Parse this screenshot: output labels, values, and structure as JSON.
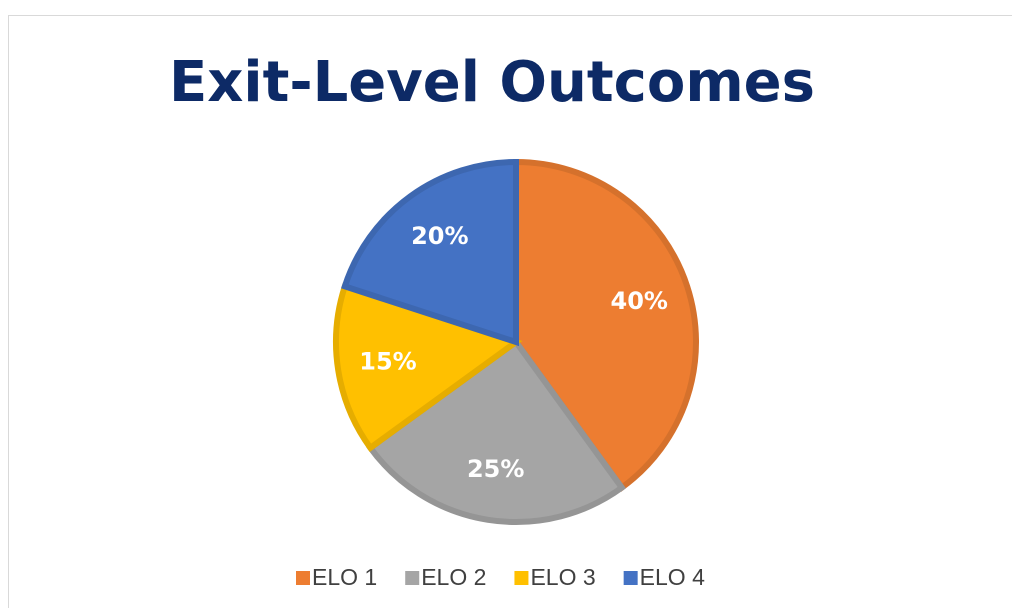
{
  "chart_data": {
    "type": "pie",
    "title": "Exit-Level Outcomes",
    "categories": [
      "ELO 1",
      "ELO 2",
      "ELO 3",
      "ELO 4"
    ],
    "values": [
      40,
      25,
      15,
      20
    ],
    "value_labels": [
      "40%",
      "25%",
      "15%",
      "20%"
    ],
    "colors": [
      "#ed7d31",
      "#a5a5a5",
      "#ffc000",
      "#4472c4"
    ],
    "legend": "bottom"
  }
}
